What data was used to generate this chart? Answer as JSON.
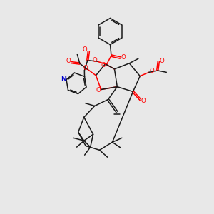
{
  "bg_color": "#e8e8e8",
  "bond_color": "#1a1a1a",
  "oxygen_color": "#ff0000",
  "nitrogen_color": "#0000cc",
  "line_width": 1.1,
  "figsize": [
    3.0,
    3.0
  ],
  "dpi": 100,
  "xlim": [
    0,
    10
  ],
  "ylim": [
    0,
    10
  ]
}
